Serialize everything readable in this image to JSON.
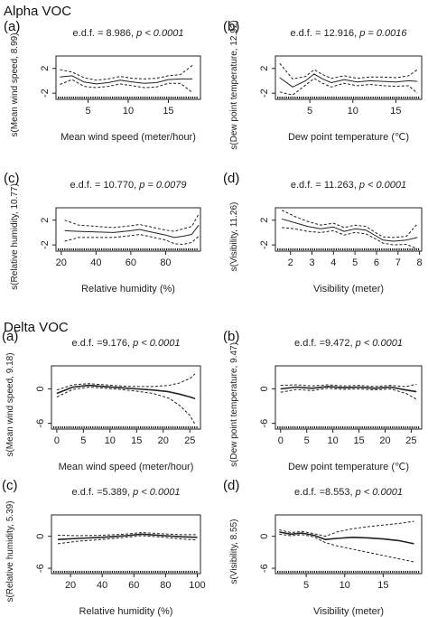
{
  "sections": [
    {
      "title": "Alpha VOC"
    },
    {
      "title": "Delta VOC"
    }
  ],
  "chart_data": [
    {
      "type": "line",
      "panel": "(a)",
      "section": "Alpha VOC",
      "annotation": "e.d.f. = 8.986, p < 0.0001",
      "edf_prefix": "e.d.f. = 8.986, ",
      "pvalue_text": "p < 0.0001",
      "ylabel": "s(Mean wind speed, 8.99)",
      "xlabel": "Mean wind speed (meter/hour)",
      "xlim": [
        1,
        19
      ],
      "ylim": [
        -3,
        4
      ],
      "xticks": [
        5,
        10,
        15
      ],
      "xtick_labels": [
        "5",
        "10",
        "15"
      ],
      "yticks": [
        2,
        -2
      ],
      "ytick_labels": [
        "2",
        "-2"
      ],
      "x": [
        1.5,
        3,
        4.5,
        6,
        7.5,
        9,
        10.5,
        12,
        13.5,
        15,
        16.5,
        18
      ],
      "series": [
        {
          "role": "fit",
          "values": [
            0.6,
            0.8,
            -0.2,
            -0.5,
            -0.3,
            0.1,
            -0.2,
            -0.4,
            -0.3,
            0.2,
            0.3,
            0.3
          ]
        },
        {
          "role": "upper",
          "values": [
            1.8,
            1.4,
            0.5,
            0.1,
            0.3,
            0.7,
            0.4,
            0.3,
            0.4,
            0.8,
            1.0,
            2.5
          ]
        },
        {
          "role": "lower",
          "values": [
            -0.6,
            0.2,
            -0.9,
            -1.1,
            -0.9,
            -0.5,
            -0.8,
            -1.1,
            -1.0,
            -0.4,
            -0.4,
            -1.9
          ]
        }
      ]
    },
    {
      "type": "line",
      "panel": "(b)",
      "section": "Alpha VOC",
      "annotation": "e.d.f. = 12.916, p = 0.0016",
      "edf_prefix": "e.d.f. = 12.916, ",
      "pvalue_text": "p = 0.0016",
      "ylabel": "s(Dew point temperature, 12.92)",
      "xlabel": "Dew point temperature (℃)",
      "xlim": [
        1,
        18
      ],
      "ylim": [
        -3,
        4
      ],
      "xticks": [
        5,
        10,
        15
      ],
      "xtick_labels": [
        "5",
        "10",
        "15"
      ],
      "yticks": [
        2,
        -2
      ],
      "ytick_labels": [
        "2",
        "-2"
      ],
      "x": [
        1.5,
        3,
        4.5,
        5.5,
        6.5,
        7.5,
        9,
        10.5,
        12,
        13.5,
        15,
        16.5,
        17.5
      ],
      "series": [
        {
          "role": "fit",
          "values": [
            0.5,
            -1.0,
            0.0,
            1.1,
            0.3,
            -0.3,
            0.2,
            -0.2,
            0.0,
            -0.1,
            -0.2,
            0.0,
            -0.1
          ]
        },
        {
          "role": "upper",
          "values": [
            2.8,
            0.3,
            0.7,
            1.8,
            1.0,
            0.4,
            0.8,
            0.4,
            0.6,
            0.6,
            0.5,
            0.8,
            1.8
          ]
        },
        {
          "role": "lower",
          "values": [
            -1.8,
            -2.3,
            -0.7,
            0.4,
            -0.4,
            -1.0,
            -0.4,
            -0.8,
            -0.6,
            -0.8,
            -0.9,
            -0.8,
            -2.0
          ]
        }
      ]
    },
    {
      "type": "line",
      "panel": "(c)",
      "section": "Alpha VOC",
      "annotation": "e.d.f. = 10.770, p = 0.0079",
      "edf_prefix": "e.d.f. = 10.770, ",
      "pvalue_text": "p = 0.0079",
      "ylabel": "s(Relative humidity, 10.77)",
      "xlabel": "Relative humidity (%)",
      "xlim": [
        17,
        100
      ],
      "ylim": [
        -3,
        4
      ],
      "xticks": [
        20,
        40,
        60,
        80
      ],
      "xtick_labels": [
        "20",
        "40",
        "60",
        "80"
      ],
      "yticks": [
        2,
        -2
      ],
      "ytick_labels": [
        "2",
        "-2"
      ],
      "x": [
        22,
        30,
        40,
        50,
        60,
        65,
        70,
        80,
        85,
        90,
        95,
        99
      ],
      "series": [
        {
          "role": "fit",
          "values": [
            0.3,
            0.2,
            0.1,
            0.0,
            0.3,
            0.5,
            0.2,
            -0.4,
            -0.8,
            -0.6,
            -0.3,
            1.2
          ]
        },
        {
          "role": "upper",
          "values": [
            2.0,
            1.2,
            1.0,
            0.8,
            1.1,
            1.3,
            1.0,
            0.4,
            0.2,
            0.6,
            1.0,
            3.0
          ]
        },
        {
          "role": "lower",
          "values": [
            -1.4,
            -0.8,
            -0.8,
            -0.8,
            -0.5,
            -0.3,
            -0.6,
            -1.2,
            -1.8,
            -1.9,
            -1.6,
            -0.6
          ]
        }
      ]
    },
    {
      "type": "line",
      "panel": "(d)",
      "section": "Alpha VOC",
      "annotation": "e.d.f. = 11.263, p < 0.0001",
      "edf_prefix": "e.d.f. = 11.263, ",
      "pvalue_text": "p < 0.0001",
      "ylabel": "s(Visibility, 11.26)",
      "xlabel": "Visibility (meter)",
      "xlim": [
        1.3,
        8.1
      ],
      "ylim": [
        -3,
        4
      ],
      "xticks": [
        2,
        3,
        4,
        5,
        6,
        7,
        8
      ],
      "xtick_labels": [
        "2",
        "3",
        "4",
        "5",
        "6",
        "7",
        "8"
      ],
      "yticks": [
        2,
        -2
      ],
      "ytick_labels": [
        "2",
        "-2"
      ],
      "x": [
        1.6,
        2.2,
        2.8,
        3.4,
        4.0,
        4.5,
        5.0,
        5.5,
        6.0,
        6.3,
        6.8,
        7.4,
        7.9
      ],
      "series": [
        {
          "role": "fit",
          "values": [
            2.2,
            1.6,
            1.0,
            0.6,
            0.9,
            0.2,
            0.6,
            0.4,
            -0.6,
            -1.2,
            -1.4,
            -1.2,
            -0.8
          ]
        },
        {
          "role": "upper",
          "values": [
            3.6,
            2.6,
            1.8,
            1.2,
            1.5,
            0.8,
            1.2,
            1.0,
            -0.1,
            -0.7,
            -0.8,
            -0.6,
            1.4
          ]
        },
        {
          "role": "lower",
          "values": [
            0.8,
            0.6,
            0.2,
            0.0,
            0.3,
            -0.4,
            0.0,
            -0.2,
            -1.1,
            -1.7,
            -2.0,
            -1.9,
            -2.6
          ]
        }
      ]
    },
    {
      "type": "line",
      "panel": "(a)",
      "section": "Delta VOC",
      "annotation": "e.d.f. =9.176, p < 0.0001",
      "edf_prefix": "e.d.f. =9.176, ",
      "pvalue_text": "p < 0.0001",
      "ylabel": "s(Mean wind speed, 9.18)",
      "xlabel": "Mean wind speed (meter/hour)",
      "xlim": [
        -1,
        27
      ],
      "ylim": [
        -7,
        4
      ],
      "xticks": [
        0,
        5,
        10,
        15,
        20,
        25
      ],
      "xtick_labels": [
        "0",
        "5",
        "10",
        "15",
        "20",
        "25"
      ],
      "yticks": [
        0,
        -6
      ],
      "ytick_labels": [
        "0",
        "-6"
      ],
      "x": [
        0,
        3,
        6,
        9,
        12,
        15,
        18,
        21,
        23,
        25,
        26
      ],
      "series": [
        {
          "role": "fit",
          "values": [
            -0.8,
            0.3,
            0.6,
            0.4,
            0.2,
            0.0,
            -0.2,
            -0.5,
            -0.9,
            -1.4,
            -1.7
          ]
        },
        {
          "role": "upper",
          "values": [
            -0.2,
            0.7,
            0.9,
            0.7,
            0.5,
            0.4,
            0.4,
            0.6,
            1.0,
            1.8,
            2.6
          ]
        },
        {
          "role": "lower",
          "values": [
            -1.4,
            -0.1,
            0.3,
            0.1,
            -0.1,
            -0.4,
            -0.8,
            -1.6,
            -2.8,
            -4.6,
            -6.2
          ]
        }
      ]
    },
    {
      "type": "line",
      "panel": "(b)",
      "section": "Delta VOC",
      "annotation": "e.d.f. =9.472, p < 0.0001",
      "edf_prefix": "e.d.f. =9.472, ",
      "pvalue_text": "p < 0.0001",
      "ylabel": "s(Dew point temperature, 9.47)",
      "xlabel": "Dew point temperature (℃)",
      "xlim": [
        -1,
        27
      ],
      "ylim": [
        -7,
        4
      ],
      "xticks": [
        0,
        5,
        10,
        15,
        20,
        25
      ],
      "xtick_labels": [
        "0",
        "5",
        "10",
        "15",
        "20",
        "25"
      ],
      "yticks": [
        0,
        -6
      ],
      "ytick_labels": [
        "0",
        "-6"
      ],
      "x": [
        0,
        3,
        6,
        9,
        12,
        15,
        18,
        21,
        24,
        26
      ],
      "series": [
        {
          "role": "fit",
          "values": [
            0.0,
            0.3,
            0.1,
            0.4,
            0.2,
            0.3,
            0.1,
            0.3,
            -0.2,
            -0.5
          ]
        },
        {
          "role": "upper",
          "values": [
            0.6,
            0.7,
            0.5,
            0.7,
            0.5,
            0.6,
            0.4,
            0.6,
            0.4,
            0.8
          ]
        },
        {
          "role": "lower",
          "values": [
            -0.6,
            -0.1,
            -0.3,
            0.1,
            -0.1,
            0.0,
            -0.2,
            0.0,
            -0.8,
            -1.8
          ]
        }
      ]
    },
    {
      "type": "line",
      "panel": "(c)",
      "section": "Delta VOC",
      "annotation": "e.d.f. =5.389, p < 0.0001",
      "edf_prefix": "e.d.f. =5.389, ",
      "pvalue_text": "p < 0.0001",
      "ylabel": "s(Relative humidity, 5.39)",
      "xlabel": "Relative humidity (%)",
      "xlim": [
        8,
        102
      ],
      "ylim": [
        -7,
        4
      ],
      "xticks": [
        20,
        40,
        60,
        80,
        100
      ],
      "xtick_labels": [
        "20",
        "40",
        "60",
        "80",
        "100"
      ],
      "yticks": [
        0,
        -6
      ],
      "ytick_labels": [
        "0",
        "-6"
      ],
      "x": [
        12,
        25,
        40,
        55,
        65,
        75,
        90,
        100
      ],
      "series": [
        {
          "role": "fit",
          "values": [
            -0.6,
            -0.4,
            -0.2,
            0.1,
            0.4,
            0.2,
            -0.1,
            -0.2
          ]
        },
        {
          "role": "upper",
          "values": [
            0.2,
            0.1,
            0.2,
            0.4,
            0.7,
            0.5,
            0.3,
            0.3
          ]
        },
        {
          "role": "lower",
          "values": [
            -1.4,
            -0.9,
            -0.6,
            -0.2,
            0.1,
            -0.1,
            -0.5,
            -0.7
          ]
        }
      ]
    },
    {
      "type": "line",
      "panel": "(d)",
      "section": "Delta VOC",
      "annotation": "e.d.f. =8.553, p < 0.0001",
      "edf_prefix": "e.d.f. =8.553, ",
      "pvalue_text": "p < 0.0001",
      "ylabel": "s(Visibility, 8.55)",
      "xlabel": "Visibility (meter)",
      "xlim": [
        1,
        20
      ],
      "ylim": [
        -7,
        4
      ],
      "xticks": [
        5,
        10,
        15
      ],
      "xtick_labels": [
        "5",
        "10",
        "15"
      ],
      "yticks": [
        0,
        -6
      ],
      "ytick_labels": [
        "0",
        "-6"
      ],
      "x": [
        1.5,
        3,
        4.5,
        6,
        7.5,
        9,
        11,
        13,
        15,
        17,
        19
      ],
      "series": [
        {
          "role": "fit",
          "values": [
            0.8,
            0.4,
            0.6,
            0.2,
            -0.6,
            -0.4,
            -0.2,
            -0.3,
            -0.5,
            -0.8,
            -1.4
          ]
        },
        {
          "role": "upper",
          "values": [
            1.2,
            0.7,
            0.9,
            0.5,
            0.0,
            0.8,
            1.4,
            1.8,
            2.1,
            2.4,
            2.8
          ]
        },
        {
          "role": "lower",
          "values": [
            0.4,
            0.1,
            0.3,
            -0.1,
            -1.2,
            -1.8,
            -2.4,
            -3.0,
            -3.6,
            -4.2,
            -4.8
          ]
        }
      ]
    }
  ]
}
